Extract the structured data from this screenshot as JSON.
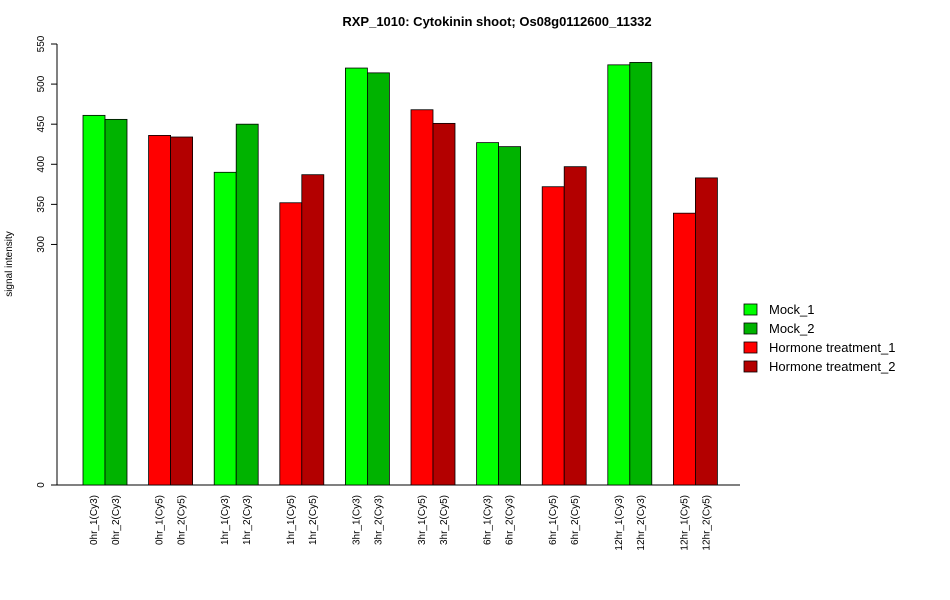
{
  "chart_data": {
    "type": "bar",
    "title": "RXP_1010: Cytokinin shoot; Os08g0112600_11332",
    "ylabel": "signal intensity",
    "xlabel": "",
    "ylim": [
      0,
      550
    ],
    "yticks": [
      0,
      300,
      350,
      400,
      450,
      500,
      550
    ],
    "grid": false,
    "legend_position": "right",
    "categories": [
      "0hr_1(Cy3)",
      "0hr_2(Cy3)",
      "0hr_1(Cy5)",
      "0hr_2(Cy5)",
      "1hr_1(Cy3)",
      "1hr_2(Cy3)",
      "1hr_1(Cy5)",
      "1hr_2(Cy5)",
      "3hr_1(Cy3)",
      "3hr_2(Cy3)",
      "3hr_1(Cy5)",
      "3hr_2(Cy5)",
      "6hr_1(Cy3)",
      "6hr_2(Cy3)",
      "6hr_1(Cy5)",
      "6hr_2(Cy5)",
      "12hr_1(Cy3)",
      "12hr_2(Cy3)",
      "12hr_1(Cy5)",
      "12hr_2(Cy5)"
    ],
    "values": [
      461,
      456,
      436,
      434,
      390,
      450,
      352,
      387,
      520,
      514,
      468,
      451,
      427,
      422,
      372,
      397,
      524,
      527,
      339,
      383
    ],
    "series_index": [
      0,
      1,
      2,
      3,
      0,
      1,
      2,
      3,
      0,
      1,
      2,
      3,
      0,
      1,
      2,
      3,
      0,
      1,
      2,
      3
    ],
    "series": [
      {
        "name": "Mock_1",
        "color": "#00ff00"
      },
      {
        "name": "Mock_2",
        "color": "#00b300"
      },
      {
        "name": "Hormone treatment_1",
        "color": "#ff0000"
      },
      {
        "name": "Hormone treatment_2",
        "color": "#b30000"
      }
    ]
  }
}
